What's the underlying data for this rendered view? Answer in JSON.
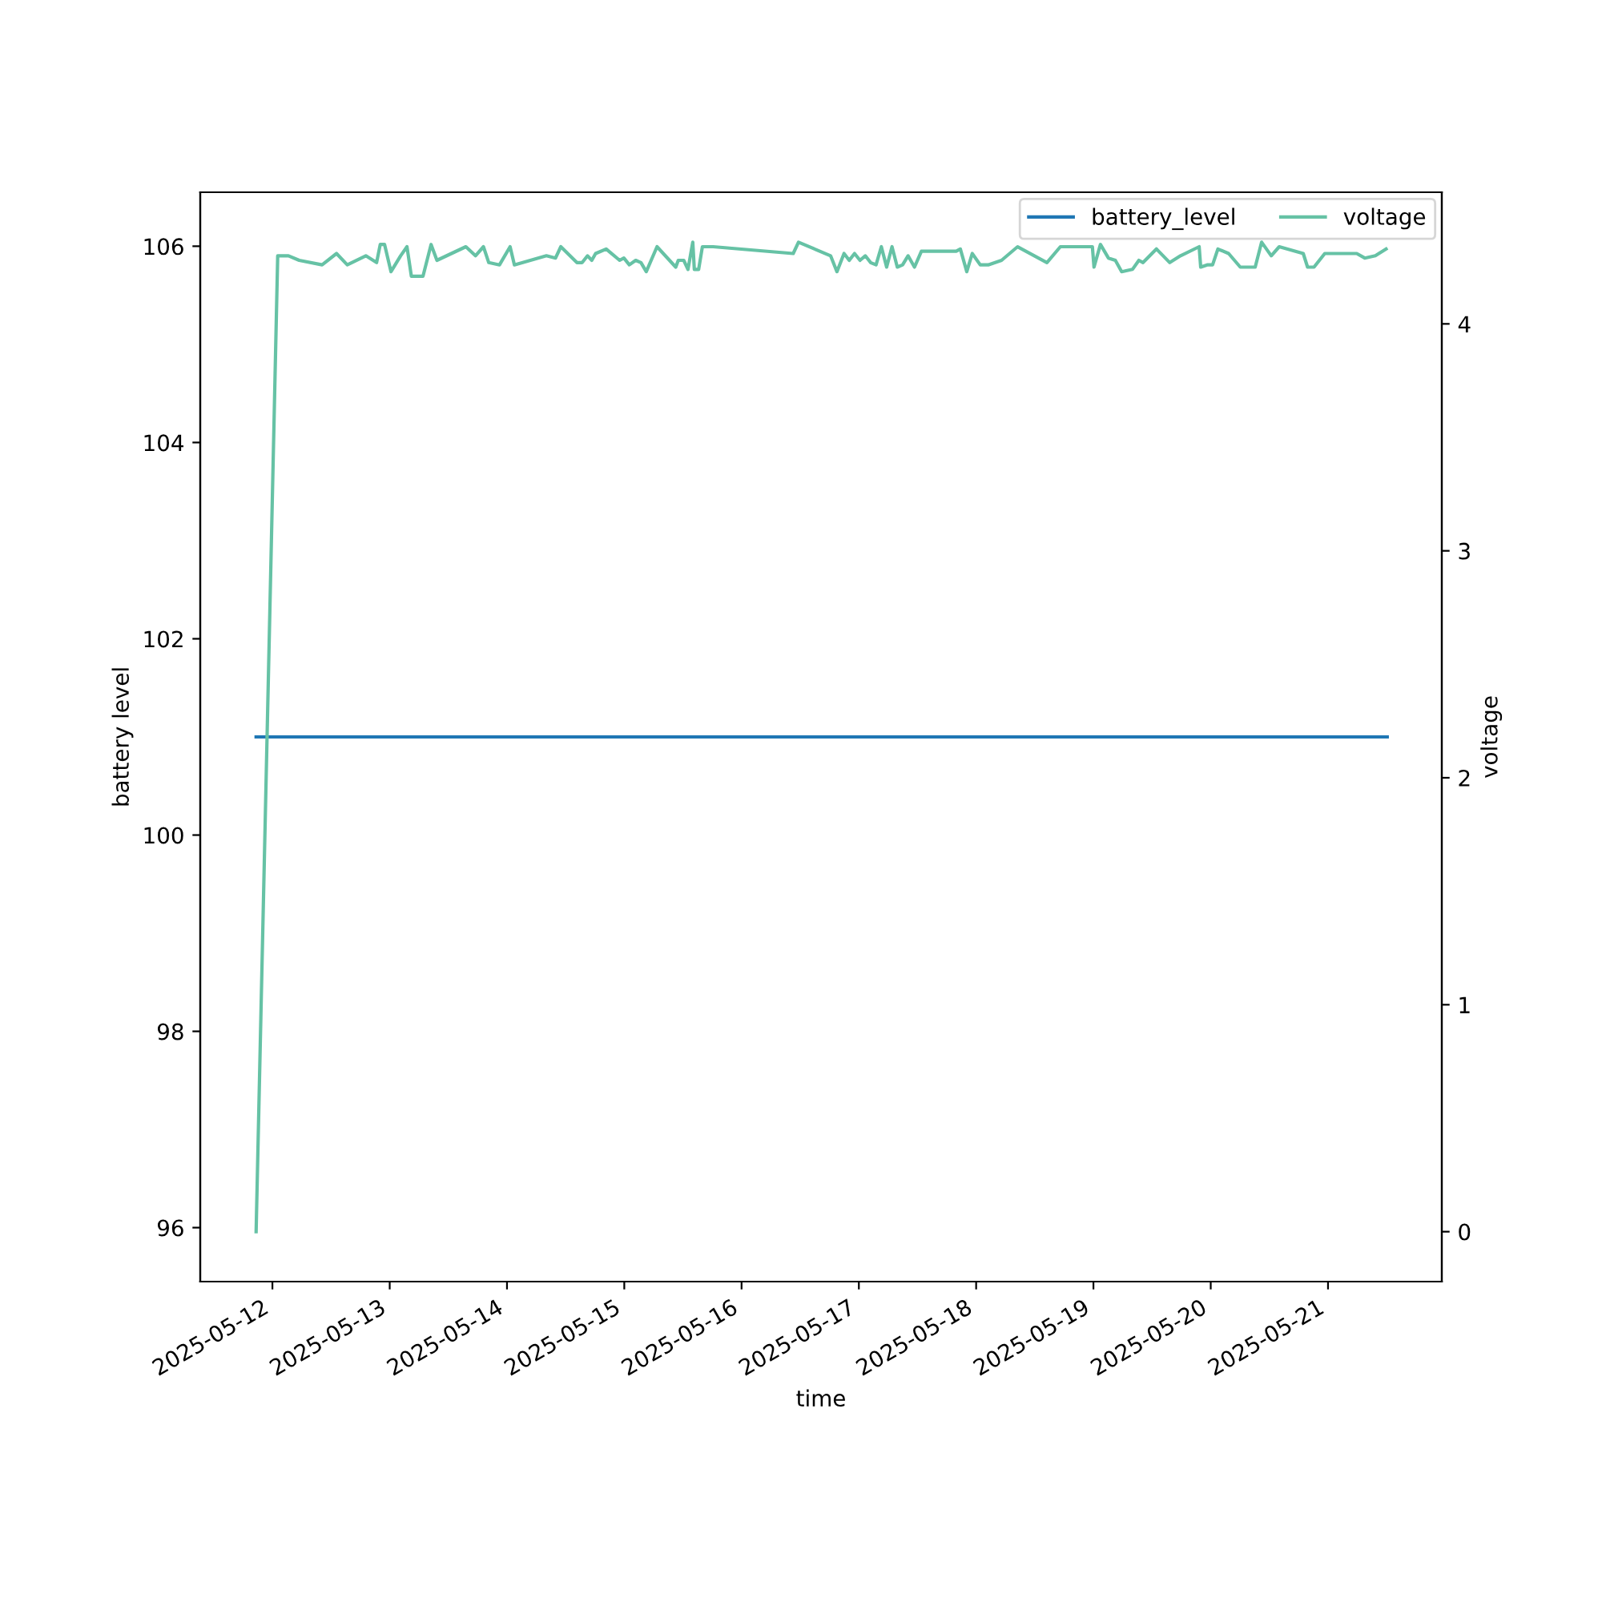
{
  "chart_data": {
    "type": "line",
    "xlabel": "time",
    "ylabel": "battery level",
    "y2label": "voltage",
    "xlim": [
      "2025-05-11T09:14",
      "2025-05-21T23:17"
    ],
    "xticks": [
      "2025-05-12",
      "2025-05-13",
      "2025-05-14",
      "2025-05-15",
      "2025-05-16",
      "2025-05-17",
      "2025-05-18",
      "2025-05-19",
      "2025-05-20",
      "2025-05-21"
    ],
    "ylim": [
      95.45,
      106.55
    ],
    "yticks": [
      96,
      98,
      100,
      102,
      104,
      106
    ],
    "y2lim": [
      -0.22,
      4.58
    ],
    "y2ticks": [
      0,
      1,
      2,
      3,
      4
    ],
    "legend": "top right",
    "series": [
      {
        "name": "battery_level",
        "color": "#1f77b4",
        "x": [
          "2025-05-11T20:40",
          "2025-05-21T12:07"
        ],
        "values": [
          101,
          101
        ]
      },
      {
        "name": "voltage",
        "color": "#66c2a5",
        "axis": "y2",
        "x": [
          "2025-05-11T20:40",
          "2025-05-12T01:05",
          "2025-05-12T03:17",
          "2025-05-12T05:29",
          "2025-05-12T10:10",
          "2025-05-12T13:07",
          "2025-05-12T15:19",
          "2025-05-12T19:07",
          "2025-05-12T21:19",
          "2025-05-12T22:04",
          "2025-05-12T22:57",
          "2025-05-13T00:16",
          "2025-05-13T02:14",
          "2025-05-13T03:32",
          "2025-05-13T04:26",
          "2025-05-13T06:49",
          "2025-05-13T08:28",
          "2025-05-13T09:40",
          "2025-05-13T15:35",
          "2025-05-13T17:33",
          "2025-05-13T19:11",
          "2025-05-13T20:16",
          "2025-05-13T22:28",
          "2025-05-14T00:38",
          "2025-05-14T01:31",
          "2025-05-14T08:04",
          "2025-05-14T09:56",
          "2025-05-14T11:01",
          "2025-05-14T14:18",
          "2025-05-14T15:23",
          "2025-05-14T16:29",
          "2025-05-14T17:21",
          "2025-05-14T18:08",
          "2025-05-14T20:18",
          "2025-05-14T23:03",
          "2025-05-14T23:55",
          "2025-05-15T01:02",
          "2025-05-15T02:20",
          "2025-05-15T03:25",
          "2025-05-15T04:30",
          "2025-05-15T06:42",
          "2025-05-15T10:32",
          "2025-05-15T11:03",
          "2025-05-15T12:10",
          "2025-05-15T13:02",
          "2025-05-15T14:01",
          "2025-05-15T14:20",
          "2025-05-15T15:13",
          "2025-05-15T15:59",
          "2025-05-15T18:10",
          "2025-05-16T10:34",
          "2025-05-16T11:39",
          "2025-05-16T18:13",
          "2025-05-16T19:31",
          "2025-05-16T20:58",
          "2025-05-16T22:02",
          "2025-05-16T23:07",
          "2025-05-17T00:14",
          "2025-05-17T01:19",
          "2025-05-17T02:24",
          "2025-05-17T03:31",
          "2025-05-17T04:36",
          "2025-05-17T05:41",
          "2025-05-17T06:47",
          "2025-05-17T07:52",
          "2025-05-17T08:57",
          "2025-05-17T10:04",
          "2025-05-17T11:23",
          "2025-05-17T12:48",
          "2025-05-17T19:55",
          "2025-05-17T20:46",
          "2025-05-17T22:05",
          "2025-05-17T23:12",
          "2025-05-18T00:50",
          "2025-05-18T02:28",
          "2025-05-18T05:12",
          "2025-05-18T08:29",
          "2025-05-18T14:29",
          "2025-05-18T17:14",
          "2025-05-18T23:47",
          "2025-05-19T00:07",
          "2025-05-19T01:26",
          "2025-05-19T03:04",
          "2025-05-19T04:29",
          "2025-05-19T05:47",
          "2025-05-19T07:59",
          "2025-05-19T09:18",
          "2025-05-19T10:09",
          "2025-05-19T12:54",
          "2025-05-19T15:37",
          "2025-05-19T17:49",
          "2025-05-19T21:38",
          "2025-05-19T21:57",
          "2025-05-19T23:16",
          "2025-05-20T00:23",
          "2025-05-20T01:28",
          "2025-05-20T03:40",
          "2025-05-20T06:03",
          "2025-05-20T09:06",
          "2025-05-20T10:25",
          "2025-05-20T12:23",
          "2025-05-20T14:01",
          "2025-05-20T18:56",
          "2025-05-20T19:49",
          "2025-05-20T21:08",
          "2025-05-20T23:20",
          "2025-05-21T05:53",
          "2025-05-21T07:31",
          "2025-05-21T09:41",
          "2025-05-21T11:53"
        ],
        "values": [
          0,
          4.3,
          4.3,
          4.28,
          4.26,
          4.31,
          4.26,
          4.3,
          4.27,
          4.35,
          4.35,
          4.23,
          4.3,
          4.34,
          4.21,
          4.21,
          4.35,
          4.28,
          4.34,
          4.3,
          4.34,
          4.27,
          4.26,
          4.34,
          4.26,
          4.3,
          4.29,
          4.34,
          4.27,
          4.27,
          4.3,
          4.28,
          4.31,
          4.33,
          4.28,
          4.29,
          4.26,
          4.28,
          4.27,
          4.23,
          4.34,
          4.25,
          4.28,
          4.28,
          4.24,
          4.36,
          4.24,
          4.24,
          4.34,
          4.34,
          4.31,
          4.36,
          4.3,
          4.23,
          4.31,
          4.28,
          4.31,
          4.28,
          4.3,
          4.27,
          4.26,
          4.34,
          4.25,
          4.34,
          4.25,
          4.26,
          4.3,
          4.25,
          4.32,
          4.32,
          4.33,
          4.23,
          4.31,
          4.26,
          4.26,
          4.28,
          4.34,
          4.27,
          4.34,
          4.34,
          4.25,
          4.35,
          4.29,
          4.28,
          4.23,
          4.24,
          4.28,
          4.27,
          4.33,
          4.27,
          4.3,
          4.34,
          4.25,
          4.26,
          4.26,
          4.33,
          4.31,
          4.25,
          4.25,
          4.36,
          4.3,
          4.34,
          4.31,
          4.25,
          4.25,
          4.31,
          4.31,
          4.29,
          4.3,
          4.33
        ]
      }
    ]
  }
}
